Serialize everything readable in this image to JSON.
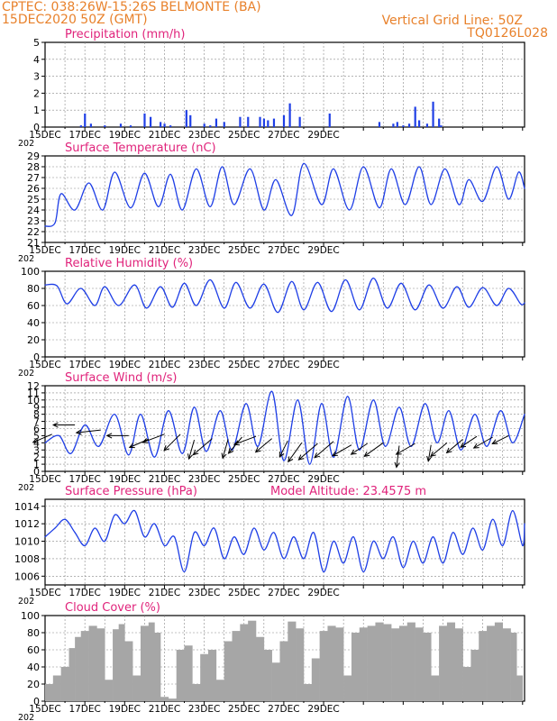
{
  "header": {
    "station": "CPTEC:   038:26W-15:26S   BELMONTE (BA)",
    "datetime": "15DEC2020 50Z (GMT)",
    "grid_note": "Vertical Grid Line: 50Z",
    "code": "TQ0126L028"
  },
  "x_ticks": [
    "15DEC",
    "17DEC",
    "19DEC",
    "21DEC",
    "23DEC",
    "25DEC",
    "27DEC",
    "29DEC"
  ],
  "year_label": "202",
  "colors": {
    "header": "#e8812b",
    "title": "#e0237b",
    "line": "#1f3fe6",
    "cloud": "#a6a6a6",
    "grid": "#888888"
  },
  "chart_data": [
    {
      "type": "bar",
      "title": "Precipitation (mm/h)",
      "ylim": [
        0,
        5
      ],
      "yticks": [
        "0",
        "1",
        "2",
        "3",
        "4",
        "5"
      ],
      "x": [
        1.8,
        2.0,
        2.3,
        3.0,
        3.8,
        4.3,
        5.0,
        5.3,
        5.8,
        6.0,
        6.3,
        7.1,
        7.3,
        8.0,
        8.3,
        8.6,
        9.0,
        9.8,
        10.2,
        10.8,
        11.0,
        11.2,
        11.5,
        12.0,
        12.3,
        12.8,
        14.3,
        16.8,
        17.5,
        17.7,
        18.0,
        18.3,
        18.6,
        18.8,
        19.2,
        19.5,
        19.8,
        19.9
      ],
      "values": [
        0.1,
        0.8,
        0.2,
        0.1,
        0.2,
        0.1,
        0.8,
        0.6,
        0.3,
        0.2,
        0.1,
        1.0,
        0.7,
        0.2,
        0.1,
        0.5,
        0.3,
        0.6,
        0.6,
        0.6,
        0.5,
        0.4,
        0.5,
        0.7,
        1.4,
        0.6,
        0.8,
        0.3,
        0.2,
        0.3,
        0.1,
        0.2,
        1.2,
        0.4,
        0.2,
        1.5,
        0.5,
        0.1
      ]
    },
    {
      "type": "line",
      "title": "Surface Temperature (nC)",
      "ylim": [
        21,
        29
      ],
      "yticks": [
        "21",
        "22",
        "23",
        "24",
        "25",
        "26",
        "27",
        "28",
        "29"
      ],
      "x": [
        0,
        0.5,
        0.8,
        1.5,
        2.2,
        2.9,
        3.5,
        4.3,
        5.0,
        5.7,
        6.3,
        6.9,
        7.6,
        8.3,
        8.9,
        9.5,
        10.3,
        11.0,
        11.6,
        12.4,
        13.0,
        13.9,
        14.5,
        15.3,
        16.0,
        16.8,
        17.4,
        18.1,
        18.8,
        19.4,
        20.1,
        20.8,
        21.3,
        22.0,
        22.7,
        23.3,
        23.8,
        24.1
      ],
      "values": [
        22.5,
        22.8,
        25.5,
        24.0,
        26.5,
        24.0,
        27.5,
        24.2,
        27.4,
        24.3,
        27.3,
        24.0,
        27.8,
        24.3,
        28.0,
        24.5,
        27.8,
        24.0,
        26.8,
        23.5,
        28.3,
        24.5,
        27.8,
        24.0,
        28.0,
        24.2,
        27.8,
        24.5,
        28.0,
        24.5,
        27.8,
        24.5,
        26.8,
        24.8,
        28.0,
        25.0,
        27.5,
        26.0
      ]
    },
    {
      "type": "line",
      "title": "Relative Humidity (%)",
      "ylim": [
        0,
        100
      ],
      "yticks": [
        "0",
        "20",
        "40",
        "60",
        "80",
        "100"
      ],
      "x": [
        0,
        0.6,
        1.1,
        1.8,
        2.5,
        3.0,
        3.7,
        4.5,
        5.1,
        5.8,
        6.4,
        7.0,
        7.6,
        8.3,
        9.0,
        9.6,
        10.3,
        11.0,
        11.7,
        12.4,
        13.0,
        13.7,
        14.4,
        15.1,
        15.8,
        16.5,
        17.2,
        17.9,
        18.6,
        19.3,
        20.0,
        20.7,
        21.3,
        22.0,
        22.7,
        23.3,
        23.9,
        24.1
      ],
      "values": [
        84,
        83,
        62,
        80,
        60,
        82,
        60,
        84,
        57,
        82,
        58,
        86,
        60,
        90,
        57,
        87,
        57,
        85,
        52,
        88,
        55,
        87,
        53,
        90,
        55,
        92,
        57,
        86,
        55,
        84,
        57,
        82,
        58,
        81,
        60,
        80,
        62,
        63
      ]
    },
    {
      "type": "line",
      "title": "Surface Wind (m/s)",
      "ylim": [
        0,
        12
      ],
      "yticks": [
        "0",
        "1",
        "2",
        "3",
        "4",
        "5",
        "6",
        "7",
        "8",
        "9",
        "10",
        "11",
        "12"
      ],
      "x": [
        0,
        0.7,
        1.3,
        2.0,
        2.7,
        3.5,
        4.2,
        4.8,
        5.5,
        6.2,
        6.9,
        7.5,
        8.1,
        8.8,
        9.4,
        10.1,
        10.7,
        11.4,
        12.0,
        12.7,
        13.3,
        13.9,
        14.5,
        15.2,
        15.8,
        16.5,
        17.1,
        17.8,
        18.4,
        19.1,
        19.7,
        20.3,
        20.9,
        21.6,
        22.2,
        22.9,
        23.5,
        24.1
      ],
      "values": [
        4,
        5,
        2.5,
        6.5,
        3.5,
        8,
        2.3,
        8,
        2,
        8.5,
        2.5,
        9,
        2.8,
        8.5,
        3,
        9.5,
        3.5,
        11.2,
        1.5,
        10,
        1,
        9.5,
        2,
        10.5,
        3,
        10,
        3.5,
        9,
        3.5,
        9.5,
        4,
        8.5,
        3,
        8,
        3.5,
        8.5,
        4,
        8
      ]
    },
    {
      "type": "line",
      "title": "Surface Pressure (hPa)",
      "annotation": "Model Altitude: 23.4575 m",
      "ylim": [
        1005,
        1014.8
      ],
      "yticks": [
        "1006",
        "1008",
        "1010",
        "1012",
        "1014"
      ],
      "x": [
        0,
        0.5,
        1.0,
        1.5,
        2.0,
        2.5,
        3.0,
        3.5,
        4.0,
        4.5,
        5.0,
        5.5,
        6.0,
        6.5,
        7.0,
        7.5,
        8.0,
        8.5,
        9.0,
        9.5,
        10.0,
        10.5,
        11.0,
        11.5,
        12.0,
        12.5,
        13.0,
        13.5,
        14.0,
        14.5,
        15.0,
        15.5,
        16.0,
        16.5,
        17.0,
        17.5,
        18.0,
        18.5,
        19.0,
        19.5,
        20.0,
        20.5,
        21.0,
        21.5,
        22.0,
        22.5,
        23.0,
        23.5,
        24.0,
        24.1
      ],
      "values": [
        1010.5,
        1011.5,
        1012.5,
        1011,
        1009.5,
        1011.5,
        1010,
        1013,
        1012,
        1013.5,
        1010.5,
        1012,
        1009.5,
        1010.5,
        1006.5,
        1011,
        1009.5,
        1011.5,
        1008,
        1010.5,
        1008.5,
        1011.5,
        1009,
        1011,
        1008,
        1010.5,
        1008,
        1011,
        1006.5,
        1010,
        1007.5,
        1010.5,
        1006.5,
        1010,
        1008,
        1010.5,
        1007,
        1010,
        1007.5,
        1010.5,
        1007.5,
        1011,
        1008.5,
        1011.5,
        1009,
        1012.5,
        1009.5,
        1013.5,
        1009.5,
        1012
      ]
    },
    {
      "type": "area",
      "title": "Cloud Cover (%)",
      "ylim": [
        0,
        100
      ],
      "yticks": [
        "0",
        "20",
        "40",
        "60",
        "80",
        "100"
      ],
      "x": [
        0,
        0.4,
        0.8,
        1.2,
        1.5,
        1.8,
        2.2,
        2.6,
        3.0,
        3.4,
        3.7,
        4.0,
        4.4,
        4.8,
        5.2,
        5.5,
        5.8,
        6.2,
        6.6,
        7.0,
        7.4,
        7.8,
        8.2,
        8.6,
        9.0,
        9.4,
        9.8,
        10.2,
        10.6,
        11.0,
        11.4,
        11.8,
        12.2,
        12.6,
        13.0,
        13.4,
        13.8,
        14.2,
        14.6,
        15.0,
        15.4,
        15.8,
        16.2,
        16.6,
        17.0,
        17.4,
        17.8,
        18.2,
        18.6,
        19.0,
        19.4,
        19.8,
        20.2,
        20.6,
        21.0,
        21.4,
        21.8,
        22.2,
        22.6,
        23.0,
        23.4,
        23.7,
        24.0
      ],
      "values": [
        20,
        30,
        40,
        62,
        75,
        82,
        88,
        85,
        25,
        84,
        90,
        70,
        30,
        88,
        92,
        80,
        5,
        3,
        60,
        65,
        20,
        55,
        60,
        25,
        70,
        82,
        90,
        94,
        75,
        60,
        45,
        70,
        93,
        85,
        20,
        50,
        82,
        88,
        86,
        30,
        80,
        86,
        88,
        92,
        90,
        85,
        88,
        92,
        86,
        80,
        30,
        88,
        92,
        85,
        40,
        60,
        82,
        88,
        92,
        85,
        80,
        30,
        0
      ]
    }
  ],
  "wind_arrows": [
    {
      "x": 0.35,
      "y": 5.2,
      "u": -0.7,
      "v": -0.3
    },
    {
      "x": 1.5,
      "y": 6.5,
      "u": -0.8,
      "v": 0.0
    },
    {
      "x": 2.8,
      "y": 5.8,
      "u": -0.9,
      "v": -0.1
    },
    {
      "x": 4.2,
      "y": 5.0,
      "u": -0.8,
      "v": 0.0
    },
    {
      "x": 5.2,
      "y": 4.5,
      "u": -0.7,
      "v": -0.3
    },
    {
      "x": 6.0,
      "y": 5.2,
      "u": -0.8,
      "v": -0.3
    },
    {
      "x": 6.8,
      "y": 5.2,
      "u": -0.6,
      "v": -0.6
    },
    {
      "x": 7.5,
      "y": 4.4,
      "u": -0.2,
      "v": -0.7
    },
    {
      "x": 8.4,
      "y": 4.6,
      "u": -0.7,
      "v": -0.6
    },
    {
      "x": 9.2,
      "y": 4.5,
      "u": -0.2,
      "v": -0.7
    },
    {
      "x": 9.9,
      "y": 4.8,
      "u": -0.5,
      "v": -0.6
    },
    {
      "x": 10.6,
      "y": 4.9,
      "u": -0.8,
      "v": -0.3
    },
    {
      "x": 11.4,
      "y": 4.6,
      "u": -0.6,
      "v": -0.5
    },
    {
      "x": 12.2,
      "y": 4.3,
      "u": -0.3,
      "v": -0.6
    },
    {
      "x": 12.9,
      "y": 4.0,
      "u": -0.5,
      "v": -0.7
    },
    {
      "x": 13.7,
      "y": 3.9,
      "u": -0.7,
      "v": -0.6
    },
    {
      "x": 14.5,
      "y": 4.2,
      "u": -0.7,
      "v": -0.6
    },
    {
      "x": 15.4,
      "y": 3.7,
      "u": -0.7,
      "v": -0.4
    },
    {
      "x": 16.2,
      "y": 3.9,
      "u": -0.6,
      "v": -0.4
    },
    {
      "x": 17.0,
      "y": 4.0,
      "u": -0.7,
      "v": -0.5
    },
    {
      "x": 17.8,
      "y": 3.6,
      "u": -0.1,
      "v": -0.8
    },
    {
      "x": 18.6,
      "y": 3.9,
      "u": -0.7,
      "v": -0.4
    },
    {
      "x": 19.4,
      "y": 3.7,
      "u": -0.1,
      "v": -0.6
    },
    {
      "x": 20.2,
      "y": 4.0,
      "u": -0.6,
      "v": -0.5
    },
    {
      "x": 21.0,
      "y": 4.5,
      "u": -0.6,
      "v": -0.5
    },
    {
      "x": 21.7,
      "y": 4.9,
      "u": -0.6,
      "v": -0.4
    },
    {
      "x": 22.5,
      "y": 4.8,
      "u": -0.7,
      "v": -0.4
    },
    {
      "x": 23.3,
      "y": 5.0,
      "u": -0.6,
      "v": -0.3
    }
  ]
}
